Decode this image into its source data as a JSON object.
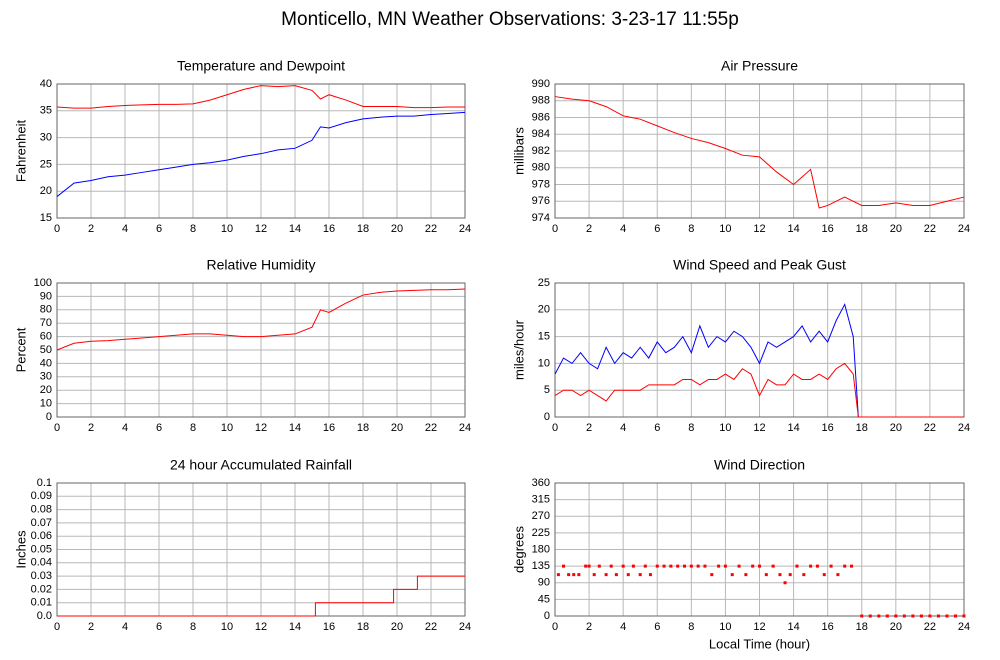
{
  "title": "Monticello, MN Weather Observations: 3-23-17 11:55p",
  "chart_data": [
    {
      "type": "line",
      "title": "Temperature and Dewpoint",
      "ylabel": "Fahrenheit",
      "x": [
        0,
        1,
        2,
        3,
        4,
        5,
        6,
        7,
        8,
        9,
        10,
        11,
        12,
        13,
        14,
        15,
        15.5,
        16,
        17,
        18,
        19,
        20,
        21,
        22,
        23,
        24
      ],
      "series": [
        {
          "name": "Temperature",
          "color": "#ff0000",
          "values": [
            35.7,
            35.5,
            35.5,
            35.8,
            36,
            36.1,
            36.2,
            36.2,
            36.3,
            37,
            38,
            39,
            39.7,
            39.5,
            39.7,
            38.8,
            37.2,
            38,
            37,
            35.8,
            35.8,
            35.8,
            35.6,
            35.6,
            35.7,
            35.7
          ]
        },
        {
          "name": "Dewpoint",
          "color": "#0000ff",
          "values": [
            19,
            21.5,
            22,
            22.7,
            23,
            23.5,
            24,
            24.5,
            25,
            25.3,
            25.8,
            26.5,
            27,
            27.7,
            28,
            29.5,
            32,
            31.8,
            32.8,
            33.5,
            33.8,
            34,
            34,
            34.3,
            34.5,
            34.7
          ]
        }
      ],
      "xlim": [
        0,
        24
      ],
      "xticks": [
        0,
        2,
        4,
        6,
        8,
        10,
        12,
        14,
        16,
        18,
        20,
        22,
        24
      ],
      "ylim": [
        15,
        40
      ],
      "yticks": [
        15,
        20,
        25,
        30,
        35,
        40
      ],
      "grid": true
    },
    {
      "type": "line",
      "title": "Air Pressure",
      "ylabel": "millibars",
      "x": [
        0,
        1,
        2,
        3,
        4,
        5,
        6,
        7,
        8,
        9,
        10,
        11,
        12,
        13,
        14,
        15,
        15.5,
        16,
        17,
        18,
        19,
        20,
        21,
        22,
        23,
        24
      ],
      "series": [
        {
          "name": "Pressure",
          "color": "#ff0000",
          "values": [
            988.5,
            988.2,
            988,
            987.3,
            986.2,
            985.8,
            985,
            984.2,
            983.5,
            983,
            982.3,
            981.5,
            981.3,
            979.5,
            978,
            979.8,
            975.2,
            975.5,
            976.5,
            975.5,
            975.5,
            975.8,
            975.5,
            975.5,
            976,
            976.5
          ]
        }
      ],
      "xlim": [
        0,
        24
      ],
      "xticks": [
        0,
        2,
        4,
        6,
        8,
        10,
        12,
        14,
        16,
        18,
        20,
        22,
        24
      ],
      "ylim": [
        974,
        990
      ],
      "yticks": [
        974,
        976,
        978,
        980,
        982,
        984,
        986,
        988,
        990
      ],
      "grid": true
    },
    {
      "type": "line",
      "title": "Relative Humidity",
      "ylabel": "Percent",
      "x": [
        0,
        1,
        2,
        3,
        4,
        5,
        6,
        7,
        8,
        9,
        10,
        11,
        12,
        13,
        14,
        15,
        15.5,
        16,
        17,
        18,
        19,
        20,
        21,
        22,
        23,
        24
      ],
      "series": [
        {
          "name": "Humidity",
          "color": "#ff0000",
          "values": [
            50,
            55,
            56.5,
            57,
            58,
            59,
            60,
            61,
            62,
            62,
            61,
            60,
            60,
            61,
            62,
            67,
            80,
            78,
            85,
            91,
            93,
            94,
            94.5,
            95,
            95,
            95.5
          ]
        }
      ],
      "xlim": [
        0,
        24
      ],
      "xticks": [
        0,
        2,
        4,
        6,
        8,
        10,
        12,
        14,
        16,
        18,
        20,
        22,
        24
      ],
      "ylim": [
        0,
        100
      ],
      "yticks": [
        0,
        10,
        20,
        30,
        40,
        50,
        60,
        70,
        80,
        90,
        100
      ],
      "grid": true
    },
    {
      "type": "line",
      "title": "Wind Speed and Peak Gust",
      "ylabel": "miles/hour",
      "x": [
        0,
        0.5,
        1,
        1.5,
        2,
        2.5,
        3,
        3.5,
        4,
        4.5,
        5,
        5.5,
        6,
        6.5,
        7,
        7.5,
        8,
        8.5,
        9,
        9.5,
        10,
        10.5,
        11,
        11.5,
        12,
        12.5,
        13,
        13.5,
        14,
        14.5,
        15,
        15.5,
        16,
        16.5,
        17,
        17.5,
        17.8,
        24
      ],
      "series": [
        {
          "name": "Peak Gust",
          "color": "#0000ff",
          "values": [
            8,
            11,
            10,
            12,
            10,
            9,
            13,
            10,
            12,
            11,
            13,
            11,
            14,
            12,
            13,
            15,
            12,
            17,
            13,
            15,
            14,
            16,
            15,
            13,
            10,
            14,
            13,
            14,
            15,
            17,
            14,
            16,
            14,
            18,
            21,
            15,
            0,
            0
          ]
        },
        {
          "name": "Wind Speed",
          "color": "#ff0000",
          "values": [
            4,
            5,
            5,
            4,
            5,
            4,
            3,
            5,
            5,
            5,
            5,
            6,
            6,
            6,
            6,
            7,
            7,
            6,
            7,
            7,
            8,
            7,
            9,
            8,
            4,
            7,
            6,
            6,
            8,
            7,
            7,
            8,
            7,
            9,
            10,
            8,
            0,
            0
          ]
        }
      ],
      "xlim": [
        0,
        24
      ],
      "xticks": [
        0,
        2,
        4,
        6,
        8,
        10,
        12,
        14,
        16,
        18,
        20,
        22,
        24
      ],
      "ylim": [
        0,
        25
      ],
      "yticks": [
        0,
        5,
        10,
        15,
        20,
        25
      ],
      "grid": true
    },
    {
      "type": "line",
      "title": "24 hour Accumulated Rainfall",
      "ylabel": "Inches",
      "x": [
        0,
        15.2,
        15.2,
        19.8,
        19.8,
        21.2,
        21.2,
        24
      ],
      "series": [
        {
          "name": "Rainfall",
          "color": "#ff0000",
          "values": [
            0,
            0,
            0.01,
            0.01,
            0.02,
            0.02,
            0.03,
            0.03
          ]
        }
      ],
      "xlim": [
        0,
        24
      ],
      "xticks": [
        0,
        2,
        4,
        6,
        8,
        10,
        12,
        14,
        16,
        18,
        20,
        22,
        24
      ],
      "ylim": [
        0,
        0.1
      ],
      "yticks": [
        {
          "value": 0,
          "label": "0.0"
        },
        0.01,
        0.02,
        0.03,
        0.04,
        0.05,
        0.06,
        0.07,
        0.08,
        0.09,
        0.1
      ],
      "grid": true
    },
    {
      "type": "scatter",
      "title": "Wind Direction",
      "ylabel": "degrees",
      "xlabel": "Local Time (hour)",
      "x": [
        0.2,
        0.5,
        0.8,
        1.1,
        1.4,
        1.8,
        2.0,
        2.3,
        2.6,
        3.0,
        3.3,
        3.6,
        4.0,
        4.3,
        4.6,
        5.0,
        5.3,
        5.6,
        6.0,
        6.4,
        6.8,
        7.2,
        7.6,
        8.0,
        8.4,
        8.8,
        9.2,
        9.6,
        10.0,
        10.4,
        10.8,
        11.2,
        11.6,
        12.0,
        12.4,
        12.8,
        13.2,
        13.5,
        13.8,
        14.2,
        14.6,
        15.0,
        15.4,
        15.8,
        16.2,
        16.6,
        17.0,
        17.4,
        18,
        18.5,
        19,
        19.5,
        20,
        20.5,
        21,
        21.5,
        22,
        22.5,
        23,
        23.5,
        24
      ],
      "series": [
        {
          "name": "Direction",
          "color": "#ff0000",
          "values": [
            112,
            135,
            112,
            112,
            112,
            135,
            135,
            112,
            135,
            112,
            135,
            112,
            135,
            112,
            135,
            112,
            135,
            112,
            135,
            135,
            135,
            135,
            135,
            135,
            135,
            135,
            112,
            135,
            135,
            112,
            135,
            112,
            135,
            135,
            112,
            135,
            112,
            90,
            112,
            135,
            112,
            135,
            135,
            112,
            135,
            112,
            135,
            135,
            0,
            0,
            0,
            0,
            0,
            0,
            0,
            0,
            0,
            0,
            0,
            0,
            0
          ]
        }
      ],
      "xlim": [
        0,
        24
      ],
      "xticks": [
        0,
        2,
        4,
        6,
        8,
        10,
        12,
        14,
        16,
        18,
        20,
        22,
        24
      ],
      "ylim": [
        0,
        360
      ],
      "yticks": [
        0,
        45,
        90,
        135,
        180,
        225,
        270,
        315,
        360
      ],
      "grid": true
    }
  ]
}
